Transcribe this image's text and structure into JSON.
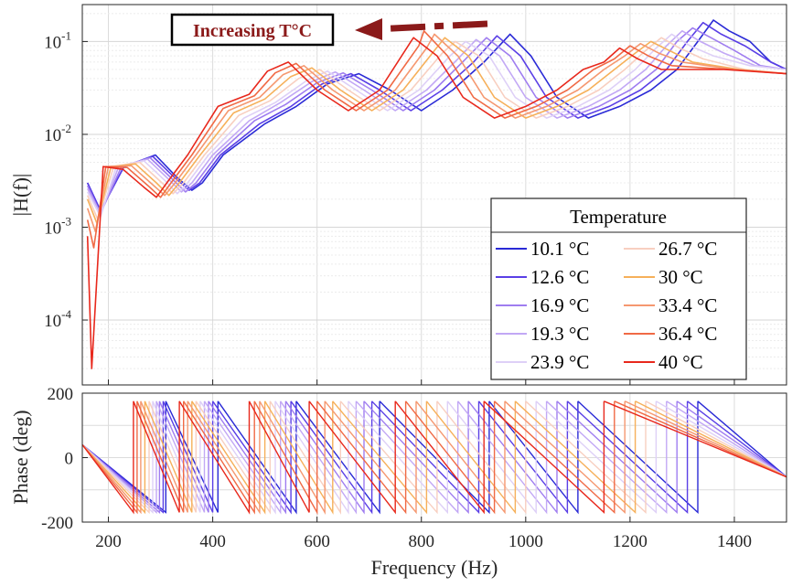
{
  "annotation": {
    "text": "Increasing T°C",
    "color": "#8b1a1a"
  },
  "legend": {
    "title": "Temperature",
    "placement": "lower-right",
    "entries": [
      {
        "label": "10.1 °C",
        "color": "#2a2ad6"
      },
      {
        "label": "12.6 °C",
        "color": "#5a3fe6"
      },
      {
        "label": "16.9 °C",
        "color": "#9f7df0"
      },
      {
        "label": "19.3 °C",
        "color": "#c2a8f5"
      },
      {
        "label": "23.9 °C",
        "color": "#ded0f7"
      },
      {
        "label": "26.7 °C",
        "color": "#f8cfc0"
      },
      {
        "label": "30 °C",
        "color": "#f6b05a"
      },
      {
        "label": "33.4 °C",
        "color": "#f59870"
      },
      {
        "label": "36.4 °C",
        "color": "#f06a45"
      },
      {
        "label": "40 °C",
        "color": "#e8281c"
      }
    ]
  },
  "chart_data": [
    {
      "type": "line",
      "ylabel": "|H(f)|",
      "xlabel": "",
      "xlim": [
        150,
        1500
      ],
      "ylim": [
        2e-05,
        0.25
      ],
      "yscale": "log",
      "grid": true,
      "x_ticks": [
        200,
        400,
        600,
        800,
        1000,
        1200,
        1400
      ],
      "y_tick_labels": [
        {
          "value": 0.1,
          "base": "10",
          "exp": "-1"
        },
        {
          "value": 0.01,
          "base": "10",
          "exp": "-2"
        },
        {
          "value": 0.001,
          "base": "10",
          "exp": "-3"
        },
        {
          "value": 0.0001,
          "base": "10",
          "exp": "-4"
        }
      ],
      "series": [
        {
          "name": "10.1 °C",
          "x": [
            160,
            185,
            230,
            290,
            330,
            360,
            380,
            420,
            500,
            560,
            620,
            680,
            740,
            800,
            860,
            920,
            970,
            1010,
            1060,
            1120,
            1180,
            1240,
            1290,
            1330,
            1360,
            1390,
            1430,
            1470,
            1500
          ],
          "y": [
            0.003,
            0.0015,
            0.0045,
            0.006,
            0.0035,
            0.0025,
            0.003,
            0.006,
            0.013,
            0.02,
            0.035,
            0.045,
            0.03,
            0.018,
            0.03,
            0.06,
            0.12,
            0.07,
            0.025,
            0.015,
            0.02,
            0.03,
            0.05,
            0.1,
            0.17,
            0.13,
            0.1,
            0.06,
            0.05
          ]
        },
        {
          "name": "12.6 °C",
          "x": [
            160,
            185,
            230,
            285,
            325,
            355,
            375,
            415,
            490,
            550,
            610,
            665,
            720,
            780,
            840,
            900,
            945,
            990,
            1040,
            1100,
            1160,
            1220,
            1270,
            1310,
            1340,
            1375,
            1420,
            1470,
            1500
          ],
          "y": [
            0.003,
            0.0015,
            0.0045,
            0.0058,
            0.0035,
            0.0025,
            0.003,
            0.006,
            0.013,
            0.02,
            0.035,
            0.045,
            0.03,
            0.018,
            0.03,
            0.06,
            0.115,
            0.07,
            0.025,
            0.015,
            0.02,
            0.03,
            0.05,
            0.1,
            0.16,
            0.12,
            0.09,
            0.06,
            0.05
          ]
        },
        {
          "name": "16.9 °C",
          "x": [
            160,
            185,
            225,
            280,
            320,
            348,
            368,
            408,
            480,
            540,
            600,
            650,
            705,
            765,
            825,
            885,
            925,
            970,
            1020,
            1080,
            1140,
            1200,
            1250,
            1290,
            1320,
            1355,
            1400,
            1450,
            1500
          ],
          "y": [
            0.0028,
            0.0014,
            0.0045,
            0.0056,
            0.0034,
            0.0024,
            0.003,
            0.006,
            0.014,
            0.021,
            0.036,
            0.046,
            0.03,
            0.018,
            0.03,
            0.065,
            0.11,
            0.07,
            0.025,
            0.015,
            0.02,
            0.03,
            0.05,
            0.1,
            0.14,
            0.11,
            0.08,
            0.055,
            0.05
          ]
        },
        {
          "name": "19.3 °C",
          "x": [
            160,
            185,
            220,
            275,
            315,
            340,
            360,
            400,
            470,
            530,
            590,
            635,
            690,
            750,
            810,
            870,
            905,
            950,
            1000,
            1060,
            1120,
            1180,
            1230,
            1270,
            1300,
            1335,
            1380,
            1440,
            1500
          ],
          "y": [
            0.0026,
            0.0014,
            0.0045,
            0.0054,
            0.0033,
            0.0024,
            0.003,
            0.006,
            0.014,
            0.022,
            0.037,
            0.047,
            0.03,
            0.018,
            0.03,
            0.065,
            0.105,
            0.07,
            0.025,
            0.015,
            0.02,
            0.03,
            0.05,
            0.09,
            0.13,
            0.1,
            0.075,
            0.055,
            0.05
          ]
        },
        {
          "name": "23.9 °C",
          "x": [
            160,
            185,
            215,
            268,
            308,
            332,
            352,
            392,
            460,
            520,
            580,
            620,
            675,
            735,
            795,
            855,
            885,
            930,
            980,
            1040,
            1100,
            1160,
            1210,
            1250,
            1280,
            1315,
            1360,
            1430,
            1500
          ],
          "y": [
            0.0024,
            0.0013,
            0.0045,
            0.0052,
            0.0032,
            0.0023,
            0.003,
            0.006,
            0.015,
            0.022,
            0.038,
            0.048,
            0.03,
            0.018,
            0.03,
            0.07,
            0.1,
            0.07,
            0.025,
            0.015,
            0.02,
            0.03,
            0.05,
            0.085,
            0.12,
            0.09,
            0.07,
            0.055,
            0.05
          ]
        },
        {
          "name": "26.7 °C",
          "x": [
            160,
            180,
            210,
            260,
            300,
            324,
            344,
            384,
            450,
            510,
            565,
            605,
            660,
            720,
            780,
            840,
            865,
            910,
            960,
            1020,
            1080,
            1140,
            1190,
            1230,
            1260,
            1295,
            1340,
            1420,
            1500
          ],
          "y": [
            0.0022,
            0.0012,
            0.0045,
            0.005,
            0.0031,
            0.0023,
            0.003,
            0.006,
            0.016,
            0.023,
            0.04,
            0.05,
            0.03,
            0.018,
            0.03,
            0.075,
            0.1,
            0.07,
            0.025,
            0.015,
            0.02,
            0.03,
            0.05,
            0.08,
            0.11,
            0.085,
            0.065,
            0.05,
            0.045
          ]
        },
        {
          "name": "30 °C",
          "x": [
            160,
            178,
            205,
            252,
            292,
            316,
            336,
            376,
            440,
            500,
            550,
            590,
            645,
            705,
            765,
            825,
            845,
            890,
            940,
            1000,
            1060,
            1120,
            1170,
            1210,
            1240,
            1275,
            1320,
            1410,
            1500
          ],
          "y": [
            0.002,
            0.0011,
            0.0045,
            0.0048,
            0.003,
            0.0022,
            0.003,
            0.006,
            0.017,
            0.024,
            0.042,
            0.052,
            0.03,
            0.018,
            0.03,
            0.08,
            0.11,
            0.07,
            0.025,
            0.015,
            0.02,
            0.03,
            0.05,
            0.075,
            0.1,
            0.08,
            0.06,
            0.05,
            0.045
          ]
        },
        {
          "name": "33.4 °C",
          "x": [
            160,
            175,
            200,
            244,
            284,
            308,
            328,
            368,
            430,
            490,
            535,
            575,
            630,
            690,
            750,
            810,
            825,
            870,
            920,
            980,
            1040,
            1100,
            1150,
            1190,
            1220,
            1255,
            1300,
            1400,
            1500
          ],
          "y": [
            0.0016,
            0.0009,
            0.0045,
            0.0046,
            0.0029,
            0.0022,
            0.003,
            0.006,
            0.018,
            0.025,
            0.044,
            0.055,
            0.03,
            0.018,
            0.03,
            0.085,
            0.12,
            0.07,
            0.025,
            0.015,
            0.02,
            0.03,
            0.05,
            0.07,
            0.095,
            0.075,
            0.06,
            0.05,
            0.045
          ]
        },
        {
          "name": "36.4 °C",
          "x": [
            160,
            172,
            195,
            236,
            276,
            300,
            320,
            360,
            420,
            480,
            520,
            560,
            615,
            675,
            735,
            795,
            805,
            850,
            900,
            960,
            1020,
            1080,
            1130,
            1170,
            1200,
            1235,
            1280,
            1390,
            1500
          ],
          "y": [
            0.0012,
            0.0006,
            0.0045,
            0.0044,
            0.0028,
            0.0021,
            0.003,
            0.006,
            0.019,
            0.026,
            0.046,
            0.058,
            0.03,
            0.018,
            0.03,
            0.09,
            0.13,
            0.07,
            0.025,
            0.015,
            0.02,
            0.03,
            0.05,
            0.065,
            0.09,
            0.07,
            0.055,
            0.05,
            0.045
          ]
        },
        {
          "name": "40 °C",
          "x": [
            160,
            168,
            190,
            228,
            268,
            292,
            312,
            352,
            410,
            470,
            505,
            545,
            600,
            660,
            720,
            780,
            785,
            830,
            880,
            940,
            1000,
            1060,
            1110,
            1150,
            1180,
            1215,
            1260,
            1380,
            1500
          ],
          "y": [
            0.0008,
            3e-05,
            0.0045,
            0.0042,
            0.0027,
            0.0021,
            0.003,
            0.006,
            0.02,
            0.027,
            0.048,
            0.06,
            0.03,
            0.018,
            0.03,
            0.1,
            0.11,
            0.07,
            0.025,
            0.015,
            0.02,
            0.03,
            0.05,
            0.06,
            0.085,
            0.065,
            0.05,
            0.05,
            0.045
          ]
        }
      ]
    },
    {
      "type": "line",
      "ylabel": "Phase (deg)",
      "xlabel": "Frequency (Hz)",
      "xlim": [
        150,
        1500
      ],
      "ylim": [
        -200,
        200
      ],
      "yscale": "linear",
      "grid": true,
      "x_ticks": [
        200,
        400,
        600,
        800,
        1000,
        1200,
        1400
      ],
      "y_ticks": [
        -200,
        0,
        200
      ],
      "phase_wrap_points": [
        {
          "name": "10.1 °C",
          "x": [
            310,
            410,
            560,
            720,
            930,
            1100,
            1330
          ]
        },
        {
          "name": "12.6 °C",
          "x": [
            305,
            400,
            550,
            705,
            910,
            1080,
            1310
          ]
        },
        {
          "name": "16.9 °C",
          "x": [
            298,
            392,
            540,
            690,
            890,
            1060,
            1290
          ]
        },
        {
          "name": "19.3 °C",
          "x": [
            292,
            384,
            530,
            675,
            870,
            1040,
            1270
          ]
        },
        {
          "name": "23.9 °C",
          "x": [
            285,
            376,
            520,
            660,
            850,
            1020,
            1250
          ]
        },
        {
          "name": "26.7 °C",
          "x": [
            278,
            368,
            510,
            645,
            830,
            1000,
            1230
          ]
        },
        {
          "name": "30 °C",
          "x": [
            270,
            360,
            500,
            630,
            810,
            980,
            1210
          ]
        },
        {
          "name": "33.4 °C",
          "x": [
            262,
            352,
            490,
            615,
            790,
            960,
            1190
          ]
        },
        {
          "name": "36.4 °C",
          "x": [
            255,
            344,
            480,
            600,
            770,
            940,
            1170
          ]
        },
        {
          "name": "40 °C",
          "x": [
            248,
            336,
            470,
            585,
            750,
            920,
            1150
          ]
        }
      ]
    }
  ]
}
